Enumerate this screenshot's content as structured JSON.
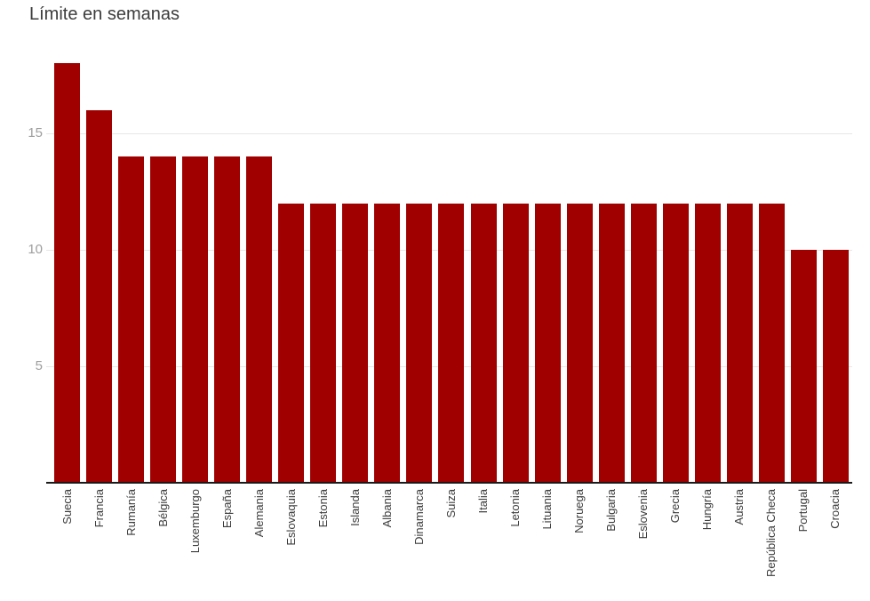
{
  "chart_data": {
    "type": "bar",
    "title": "Límite en semanas",
    "categories": [
      "Suecia",
      "Francia",
      "Rumanía",
      "Bélgica",
      "Luxemburgo",
      "España",
      "Alemania",
      "Eslovaquia",
      "Estonia",
      "Islanda",
      "Albania",
      "Dinamarca",
      "Suiza",
      "Italia",
      "Letonia",
      "Lituania",
      "Noruega",
      "Bulgaria",
      "Eslovenia",
      "Grecia",
      "Hungría",
      "Austria",
      "República Checa",
      "Portugal",
      "Croacia"
    ],
    "values": [
      18,
      16,
      14,
      14,
      14,
      14,
      14,
      12,
      12,
      12,
      12,
      12,
      12,
      12,
      12,
      12,
      12,
      12,
      12,
      12,
      12,
      12,
      12,
      10,
      10
    ],
    "xlabel": "",
    "ylabel": "",
    "yticks": [
      5,
      10,
      15
    ],
    "ylim": [
      0,
      18
    ],
    "grid": true,
    "legend": "none",
    "bar_color": "#a00000",
    "axis_color": "#1a1a1a",
    "gridline_color": "#e6e6e6",
    "ytick_color": "#9e9e9e",
    "xtick_color": "#3c3c3c",
    "title_color": "#3c3c3c"
  }
}
